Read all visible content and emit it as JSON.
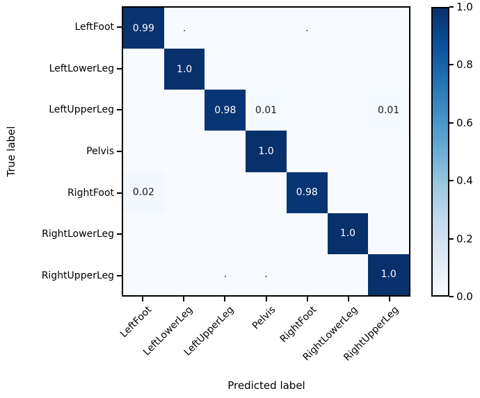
{
  "chart_data": {
    "type": "heatmap",
    "title": "",
    "x_axis_label": "Predicted label",
    "y_axis_label": "True label",
    "categories": [
      "LeftFoot",
      "LeftLowerLeg",
      "LeftUpperLeg",
      "Pelvis",
      "RightFoot",
      "RightLowerLeg",
      "RightUpperLeg"
    ],
    "matrix_values": [
      [
        0.99,
        0.0,
        0.0,
        0.0,
        0.0,
        0.0,
        0.0
      ],
      [
        0.0,
        1.0,
        0.0,
        0.0,
        0.0,
        0.0,
        0.0
      ],
      [
        0.0,
        0.0,
        0.98,
        0.01,
        0.0,
        0.0,
        0.01
      ],
      [
        0.0,
        0.0,
        0.0,
        1.0,
        0.0,
        0.0,
        0.0
      ],
      [
        0.02,
        0.0,
        0.0,
        0.0,
        0.98,
        0.0,
        0.0
      ],
      [
        0.0,
        0.0,
        0.0,
        0.0,
        0.0,
        1.0,
        0.0
      ],
      [
        0.0,
        0.0,
        0.0,
        0.0,
        0.0,
        0.0,
        1.0
      ]
    ],
    "cell_labels": [
      [
        "0.99",
        ".",
        "",
        "",
        ".",
        "",
        ""
      ],
      [
        "",
        "1.0",
        "",
        "",
        "",
        "",
        ""
      ],
      [
        "",
        "",
        "0.98",
        "0.01",
        "",
        "",
        "0.01"
      ],
      [
        "",
        "",
        "",
        "1.0",
        "",
        "",
        ""
      ],
      [
        "0.02",
        "",
        "",
        "",
        "0.98",
        "",
        ""
      ],
      [
        "",
        "",
        "",
        "",
        "",
        "1.0",
        ""
      ],
      [
        "",
        "",
        ".",
        ".",
        "",
        "",
        "1.0"
      ]
    ],
    "colormap": "Blues",
    "value_range": [
      0.0,
      1.0
    ],
    "colorbar_ticks": [
      "1.0",
      "0.8",
      "0.6",
      "0.4",
      "0.2",
      "0.0"
    ],
    "legend_position": "right-colorbar",
    "grid": false,
    "colors": {
      "blues_stops": [
        "#f7fbff",
        "#deebf7",
        "#c6dbef",
        "#9ecae1",
        "#6baed6",
        "#4292c6",
        "#2171b5",
        "#08519c",
        "#08306b"
      ],
      "text_on_dark": "#ffffff",
      "text_on_light": "#1a1a1a",
      "axis": "#000000",
      "background": "#ffffff"
    }
  }
}
